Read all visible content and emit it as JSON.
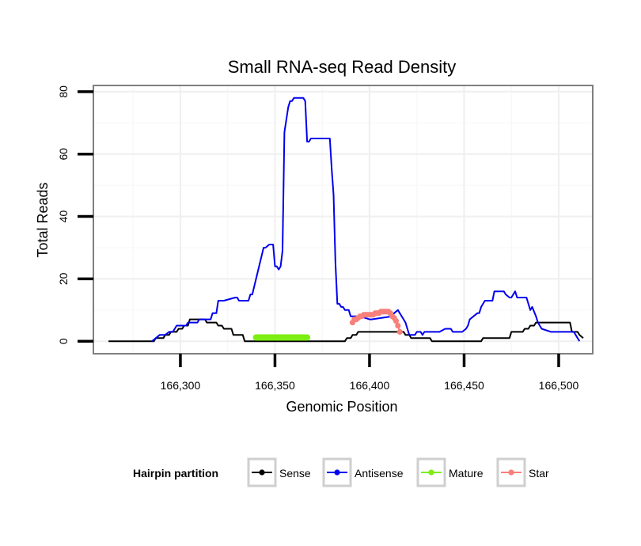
{
  "chart_data": {
    "type": "line",
    "title": "Small RNA-seq Read Density",
    "xlabel": "Genomic Position",
    "ylabel": "Total Reads",
    "xlim": [
      166254,
      166518
    ],
    "ylim": [
      -4,
      82
    ],
    "x_ticks": [
      166300,
      166350,
      166400,
      166450,
      166500
    ],
    "x_tick_labels": [
      "166,300",
      "166,350",
      "166,400",
      "166,450",
      "166,500"
    ],
    "y_ticks": [
      0,
      20,
      40,
      60,
      80
    ],
    "y_tick_labels": [
      "0",
      "20",
      "40",
      "60",
      "80"
    ],
    "grid": true,
    "legend": {
      "title": "Hairpin partition",
      "position": "bottom",
      "entries": [
        "Sense",
        "Antisense",
        "Mature",
        "Star"
      ]
    },
    "series": [
      {
        "name": "Sense",
        "color": "#000000",
        "style": "line",
        "x": [
          166262,
          166286,
          166287,
          166291,
          166292,
          166294,
          166295,
          166298,
          166299,
          166301,
          166302,
          166304,
          166305,
          166313,
          166314,
          166319,
          166320,
          166322,
          166323,
          166327,
          166328,
          166333,
          166334,
          166387,
          166388,
          166390,
          166391,
          166393,
          166394,
          166418,
          166419,
          166421,
          166422,
          166432,
          166433,
          166459,
          166460,
          166474,
          166475,
          166481,
          166482,
          166484,
          166485,
          166487,
          166488,
          166506,
          166507,
          166510,
          166511,
          166513
        ],
        "y": [
          0,
          0,
          1,
          1,
          2,
          2,
          3,
          3,
          4,
          4,
          5,
          5,
          7,
          7,
          6,
          6,
          5,
          5,
          4,
          4,
          2,
          2,
          0,
          0,
          1,
          1,
          2,
          2,
          3,
          3,
          2,
          2,
          1,
          1,
          0,
          0,
          1,
          1,
          3,
          3,
          4,
          4,
          5,
          5,
          6,
          6,
          3,
          3,
          2,
          1
        ]
      },
      {
        "name": "Antisense",
        "color": "#0000ee",
        "style": "line",
        "x": [
          166285,
          166287,
          166289,
          166292,
          166294,
          166296,
          166297,
          166298,
          166303,
          166304,
          166309,
          166310,
          166316,
          166317,
          166319,
          166320,
          166323,
          166329,
          166330,
          166331,
          166332,
          166333,
          166336,
          166337,
          166338,
          166344,
          166345,
          166347,
          166348,
          166349,
          166350,
          166351,
          166352,
          166353,
          166354,
          166355,
          166356,
          166357,
          166358,
          166359,
          166360,
          166361,
          166365,
          166366,
          166367,
          166368,
          166369,
          166370,
          166371,
          166379,
          166380,
          166381,
          166382,
          166383,
          166384,
          166385,
          166386,
          166387,
          166389,
          166390,
          166391,
          166394,
          166395,
          166400,
          166401,
          166412,
          166413,
          166415,
          166416,
          166417,
          166418,
          166419,
          166420,
          166421,
          166424,
          166425,
          166426,
          166427,
          166428,
          166429,
          166434,
          166435,
          166437,
          166440,
          166441,
          166443,
          166444,
          166445,
          166447,
          166449,
          166451,
          166452,
          166453,
          166455,
          166457,
          166458,
          166459,
          166460,
          166461,
          166462,
          166465,
          166466,
          166471,
          166472,
          166474,
          166475,
          166477,
          166478,
          166483,
          166484,
          166485,
          166486,
          166488,
          166489,
          166491,
          166496,
          166498,
          166500,
          166508,
          166509,
          166510,
          166511
        ],
        "y": [
          0,
          1,
          2,
          2,
          3,
          3,
          4,
          5,
          5,
          6,
          6,
          7,
          7,
          9,
          9,
          13,
          13,
          14,
          14,
          13,
          13,
          13,
          13,
          15,
          15,
          30,
          30,
          31,
          31,
          31,
          24,
          24,
          23,
          24,
          29,
          67,
          71,
          75,
          77,
          77,
          78,
          78,
          78,
          77,
          64,
          64,
          65,
          65,
          65,
          65,
          55,
          47,
          25,
          12,
          12,
          11,
          11,
          10,
          10,
          8,
          8,
          8,
          8,
          7,
          7,
          8,
          9,
          10,
          9,
          8,
          7,
          6,
          4,
          2,
          2,
          3,
          3,
          3,
          2,
          3,
          3,
          3,
          3,
          4,
          4,
          4,
          3,
          3,
          3,
          3,
          4,
          5,
          7,
          8,
          9,
          9,
          11,
          12,
          13,
          13,
          13,
          16,
          16,
          15,
          14,
          14,
          16,
          14,
          14,
          12,
          10,
          11,
          8,
          6,
          4,
          3,
          3,
          3,
          3,
          2,
          1,
          0
        ]
      },
      {
        "name": "Mature",
        "color": "#7cee12",
        "style": "segment",
        "x": [
          166340,
          166367
        ],
        "y": [
          1.2,
          1.2
        ]
      },
      {
        "name": "Star",
        "color": "#f8807a",
        "style": "points",
        "x": [
          166391,
          166392,
          166393,
          166394,
          166395,
          166396,
          166397,
          166398,
          166399,
          166400,
          166401,
          166402,
          166403,
          166404,
          166405,
          166406,
          166407,
          166408,
          166409,
          166410,
          166411,
          166412,
          166413,
          166414,
          166415,
          166416
        ],
        "y": [
          6,
          7,
          7,
          7.5,
          8,
          8,
          8.5,
          8.5,
          8.5,
          8.5,
          8.5,
          8.5,
          9,
          9,
          9,
          9.5,
          9.5,
          9.5,
          9.5,
          9.5,
          9,
          8,
          7.5,
          6.5,
          5,
          3
        ]
      }
    ]
  }
}
